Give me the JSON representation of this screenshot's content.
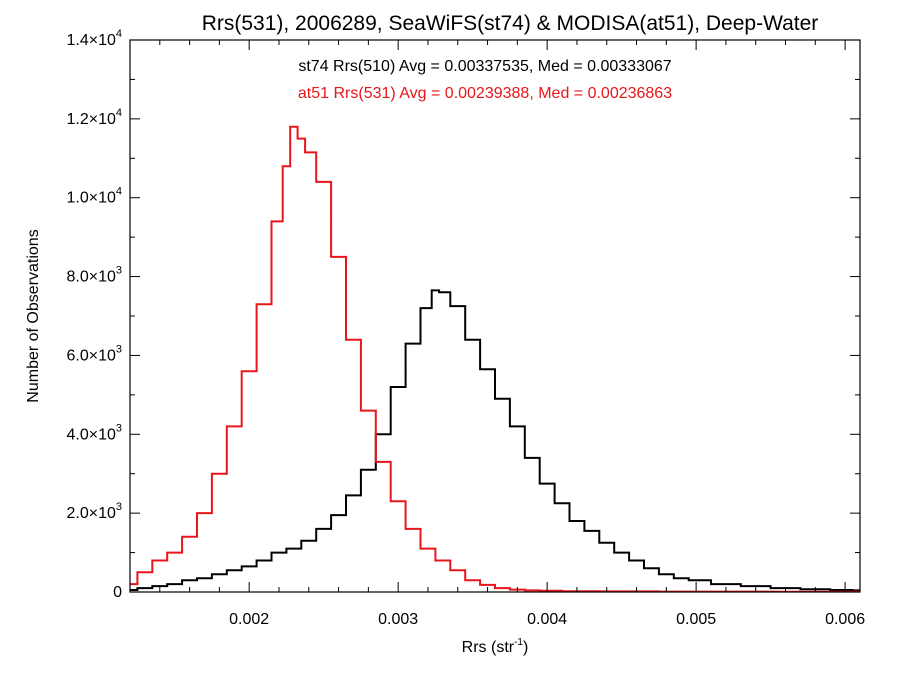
{
  "chart_data": {
    "type": "line",
    "title": "Rrs(531), 2006289, SeaWiFS(st74) & MODISA(at51), Deep-Water",
    "xlabel": {
      "base": "Rrs (str",
      "sup": "-1",
      "tail": ")"
    },
    "ylabel": "Number of Observations",
    "xlim": [
      0.0012,
      0.0061
    ],
    "ylim": [
      0,
      14000
    ],
    "x_ticks": [
      0.002,
      0.003,
      0.004,
      0.005,
      0.006
    ],
    "x_tick_labels": [
      "0.002",
      "0.003",
      "0.004",
      "0.005",
      "0.006"
    ],
    "y_ticks": [
      0,
      2000,
      4000,
      6000,
      8000,
      10000,
      12000,
      14000
    ],
    "y_tick_labels": [
      {
        "mant": "0",
        "exp": ""
      },
      {
        "mant": "2.0×10",
        "exp": "3"
      },
      {
        "mant": "4.0×10",
        "exp": "3"
      },
      {
        "mant": "6.0×10",
        "exp": "3"
      },
      {
        "mant": "8.0×10",
        "exp": "3"
      },
      {
        "mant": "1.0×10",
        "exp": "4"
      },
      {
        "mant": "1.2×10",
        "exp": "4"
      },
      {
        "mant": "1.4×10",
        "exp": "4"
      }
    ],
    "annotations": [
      {
        "text": "st74 Rrs(510) Avg = 0.00337535, Med = 0.00333067",
        "color": "#000000"
      },
      {
        "text": "at51 Rrs(531) Avg = 0.00239388, Med = 0.00236863",
        "color": "#e8161b"
      }
    ],
    "series": [
      {
        "name": "st74",
        "color": "#000000",
        "step": true,
        "points": [
          [
            0.0012,
            50
          ],
          [
            0.0013,
            100
          ],
          [
            0.0014,
            150
          ],
          [
            0.0015,
            200
          ],
          [
            0.0016,
            300
          ],
          [
            0.0017,
            350
          ],
          [
            0.0018,
            450
          ],
          [
            0.0019,
            550
          ],
          [
            0.002,
            650
          ],
          [
            0.0021,
            800
          ],
          [
            0.0022,
            1000
          ],
          [
            0.0023,
            1100
          ],
          [
            0.0024,
            1300
          ],
          [
            0.0025,
            1600
          ],
          [
            0.0026,
            1950
          ],
          [
            0.0027,
            2450
          ],
          [
            0.0028,
            3100
          ],
          [
            0.0029,
            4000
          ],
          [
            0.003,
            5200
          ],
          [
            0.0031,
            6300
          ],
          [
            0.0032,
            7200
          ],
          [
            0.00325,
            7650
          ],
          [
            0.0033,
            7600
          ],
          [
            0.0034,
            7250
          ],
          [
            0.0035,
            6400
          ],
          [
            0.0036,
            5650
          ],
          [
            0.0037,
            4900
          ],
          [
            0.0038,
            4200
          ],
          [
            0.0039,
            3400
          ],
          [
            0.004,
            2750
          ],
          [
            0.0041,
            2250
          ],
          [
            0.0042,
            1800
          ],
          [
            0.0043,
            1550
          ],
          [
            0.0044,
            1250
          ],
          [
            0.0045,
            1000
          ],
          [
            0.0046,
            800
          ],
          [
            0.0047,
            600
          ],
          [
            0.0048,
            450
          ],
          [
            0.0049,
            350
          ],
          [
            0.005,
            300
          ],
          [
            0.0052,
            200
          ],
          [
            0.0054,
            150
          ],
          [
            0.0056,
            100
          ],
          [
            0.0058,
            70
          ],
          [
            0.006,
            50
          ],
          [
            0.0061,
            40
          ]
        ]
      },
      {
        "name": "at51",
        "color": "#e8161b",
        "step": true,
        "points": [
          [
            0.0012,
            200
          ],
          [
            0.0013,
            500
          ],
          [
            0.0014,
            800
          ],
          [
            0.0015,
            1000
          ],
          [
            0.0016,
            1400
          ],
          [
            0.0017,
            2000
          ],
          [
            0.0018,
            3000
          ],
          [
            0.0019,
            4200
          ],
          [
            0.002,
            5600
          ],
          [
            0.0021,
            7300
          ],
          [
            0.0022,
            9400
          ],
          [
            0.00225,
            10800
          ],
          [
            0.0023,
            11800
          ],
          [
            0.00235,
            11500
          ],
          [
            0.0024,
            11150
          ],
          [
            0.0025,
            10400
          ],
          [
            0.0026,
            8500
          ],
          [
            0.0027,
            6400
          ],
          [
            0.0028,
            4600
          ],
          [
            0.0029,
            3300
          ],
          [
            0.003,
            2300
          ],
          [
            0.0031,
            1600
          ],
          [
            0.0032,
            1100
          ],
          [
            0.0033,
            800
          ],
          [
            0.0034,
            550
          ],
          [
            0.0035,
            300
          ],
          [
            0.0036,
            180
          ],
          [
            0.0037,
            100
          ],
          [
            0.0038,
            60
          ],
          [
            0.0039,
            40
          ],
          [
            0.004,
            30
          ],
          [
            0.0042,
            20
          ],
          [
            0.0045,
            15
          ],
          [
            0.005,
            10
          ],
          [
            0.0061,
            5
          ]
        ]
      }
    ]
  }
}
